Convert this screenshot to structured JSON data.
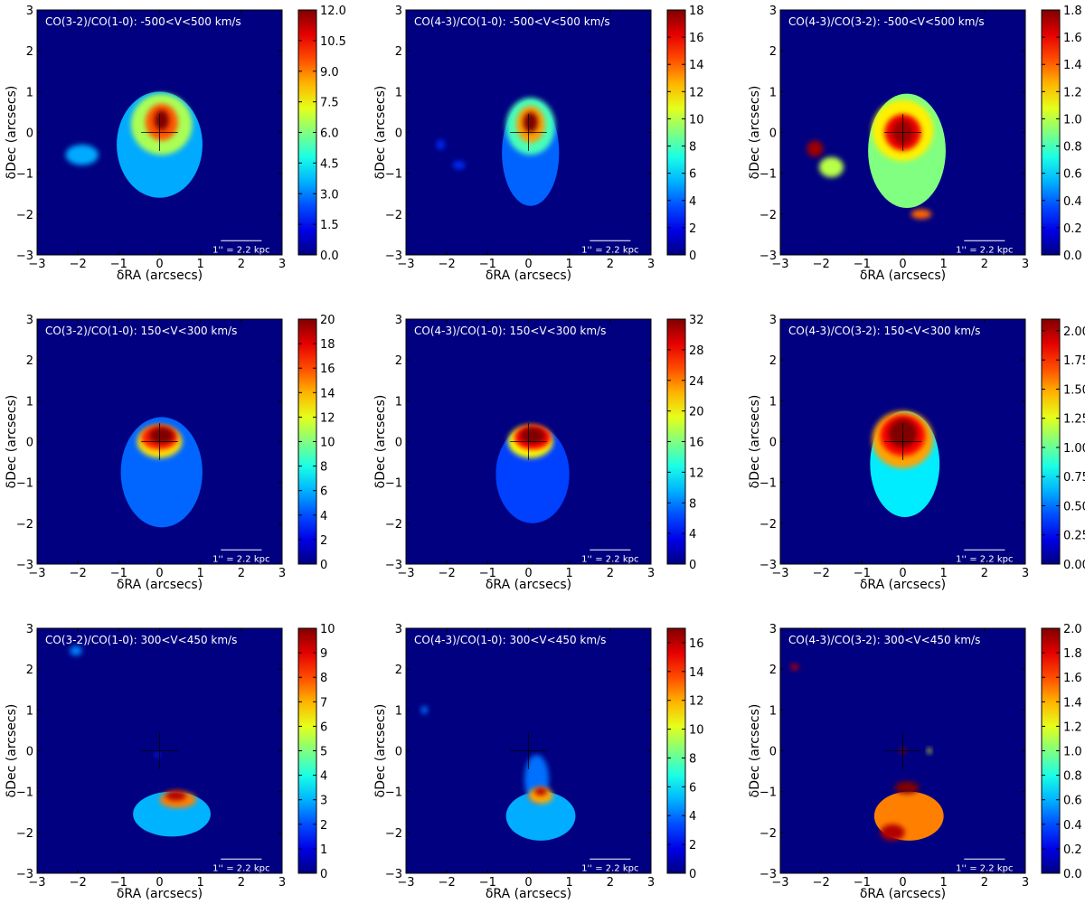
{
  "figure": {
    "scale_bar_label": "1'' = 2.2 kpc"
  },
  "chart_data": [
    {
      "type": "heatmap",
      "title": "CO(3-2)/CO(1-0): -500<V<500 km/s",
      "xlabel": "δRA (arcsecs)",
      "ylabel": "δDec (arcsecs)",
      "xlim": [
        -3,
        3
      ],
      "ylim": [
        -3,
        3
      ],
      "xticks": [
        "−3",
        "−2",
        "−1",
        "0",
        "1",
        "2",
        "3"
      ],
      "yticks": [
        "−3",
        "−2",
        "−1",
        "0",
        "1",
        "2",
        "3"
      ],
      "colorbar": {
        "min": 0,
        "max": 12,
        "ticks": [
          "0.0",
          "1.5",
          "3.0",
          "4.5",
          "6.0",
          "7.5",
          "9.0",
          "10.5",
          "12.0"
        ]
      },
      "features": [
        {
          "x": 0.0,
          "y": -0.3,
          "rx": 1.05,
          "ry": 1.3,
          "value": 3.5
        },
        {
          "x": 0.05,
          "y": 0.2,
          "rx": 0.75,
          "ry": 0.75,
          "value": 6.5
        },
        {
          "x": 0.05,
          "y": 0.25,
          "rx": 0.4,
          "ry": 0.45,
          "value": 9.5
        },
        {
          "x": 0.05,
          "y": 0.3,
          "rx": 0.18,
          "ry": 0.25,
          "value": 12
        },
        {
          "x": -1.9,
          "y": -0.55,
          "rx": 0.4,
          "ry": 0.25,
          "value": 3.5
        }
      ]
    },
    {
      "type": "heatmap",
      "title": "CO(4-3)/CO(1-0): -500<V<500 km/s",
      "xlabel": "δRA (arcsecs)",
      "ylabel": "δDec (arcsecs)",
      "xlim": [
        -3,
        3
      ],
      "ylim": [
        -3,
        3
      ],
      "xticks": [
        "−3",
        "−2",
        "−1",
        "0",
        "1",
        "2",
        "3"
      ],
      "yticks": [
        "−3",
        "−2",
        "−1",
        "0",
        "1",
        "2",
        "3"
      ],
      "colorbar": {
        "min": 0,
        "max": 18,
        "ticks": [
          "0",
          "2",
          "4",
          "6",
          "8",
          "10",
          "12",
          "14",
          "16",
          "18"
        ]
      },
      "features": [
        {
          "x": 0.05,
          "y": -0.5,
          "rx": 0.7,
          "ry": 1.3,
          "value": 4
        },
        {
          "x": 0.05,
          "y": 0.15,
          "rx": 0.6,
          "ry": 0.7,
          "value": 8
        },
        {
          "x": 0.05,
          "y": 0.2,
          "rx": 0.35,
          "ry": 0.45,
          "value": 13
        },
        {
          "x": 0.05,
          "y": 0.25,
          "rx": 0.18,
          "ry": 0.25,
          "value": 18
        },
        {
          "x": -2.15,
          "y": -0.3,
          "rx": 0.1,
          "ry": 0.12,
          "value": 3
        },
        {
          "x": -1.7,
          "y": -0.8,
          "rx": 0.15,
          "ry": 0.1,
          "value": 3
        }
      ]
    },
    {
      "type": "heatmap",
      "title": "CO(4-3)/CO(3-2): -500<V<500 km/s",
      "xlabel": "δRA (arcsecs)",
      "ylabel": "δDec (arcsecs)",
      "xlim": [
        -3,
        3
      ],
      "ylim": [
        -3,
        3
      ],
      "xticks": [
        "−3",
        "−2",
        "−1",
        "0",
        "1",
        "2",
        "3"
      ],
      "yticks": [
        "−3",
        "−2",
        "−1",
        "0",
        "1",
        "2",
        "3"
      ],
      "colorbar": {
        "min": 0,
        "max": 1.8,
        "ticks": [
          "0.0",
          "0.2",
          "0.4",
          "0.6",
          "0.8",
          "1.0",
          "1.2",
          "1.4",
          "1.6",
          "1.8"
        ]
      },
      "features": [
        {
          "x": 0.1,
          "y": -0.45,
          "rx": 0.95,
          "ry": 1.4,
          "value": 0.9
        },
        {
          "x": 0.0,
          "y": 0.05,
          "rx": 0.75,
          "ry": 0.75,
          "value": 1.15
        },
        {
          "x": 0.0,
          "y": 0.0,
          "rx": 0.45,
          "ry": 0.45,
          "value": 1.6
        },
        {
          "x": 0.0,
          "y": 0.0,
          "rx": 0.25,
          "ry": 0.3,
          "value": 1.75
        },
        {
          "x": 0.45,
          "y": -2.0,
          "rx": 0.25,
          "ry": 0.12,
          "value": 1.4
        },
        {
          "x": -1.75,
          "y": -0.85,
          "rx": 0.3,
          "ry": 0.25,
          "value": 1.0
        },
        {
          "x": -2.15,
          "y": -0.4,
          "rx": 0.2,
          "ry": 0.2,
          "value": 1.75
        }
      ]
    },
    {
      "type": "heatmap",
      "title": "CO(3-2)/CO(1-0): 150<V<300 km/s",
      "xlabel": "δRA (arcsecs)",
      "ylabel": "δDec (arcsecs)",
      "xlim": [
        -3,
        3
      ],
      "ylim": [
        -3,
        3
      ],
      "xticks": [
        "−3",
        "−2",
        "−1",
        "0",
        "1",
        "2",
        "3"
      ],
      "yticks": [
        "−3",
        "−2",
        "−1",
        "0",
        "1",
        "2",
        "3"
      ],
      "colorbar": {
        "min": 0,
        "max": 20,
        "ticks": [
          "0",
          "2",
          "4",
          "6",
          "8",
          "10",
          "12",
          "14",
          "16",
          "18",
          "20"
        ]
      },
      "features": [
        {
          "x": 0.05,
          "y": -0.75,
          "rx": 1.0,
          "ry": 1.35,
          "value": 4.5
        },
        {
          "x": 0.0,
          "y": 0.0,
          "rx": 0.55,
          "ry": 0.4,
          "value": 13
        },
        {
          "x": 0.0,
          "y": 0.1,
          "rx": 0.45,
          "ry": 0.3,
          "value": 17
        },
        {
          "x": 0.05,
          "y": 0.15,
          "rx": 0.3,
          "ry": 0.2,
          "value": 20
        }
      ]
    },
    {
      "type": "heatmap",
      "title": "CO(4-3)/CO(1-0): 150<V<300 km/s",
      "xlabel": "δRA (arcsecs)",
      "ylabel": "δDec (arcsecs)",
      "xlim": [
        -3,
        3
      ],
      "ylim": [
        -3,
        3
      ],
      "xticks": [
        "−3",
        "−2",
        "−1",
        "0",
        "1",
        "2",
        "3"
      ],
      "yticks": [
        "−3",
        "−2",
        "−1",
        "0",
        "1",
        "2",
        "3"
      ],
      "colorbar": {
        "min": 0,
        "max": 32,
        "ticks": [
          "0",
          "4",
          "8",
          "12",
          "16",
          "20",
          "24",
          "28",
          "32"
        ]
      },
      "features": [
        {
          "x": 0.1,
          "y": -0.8,
          "rx": 0.9,
          "ry": 1.2,
          "value": 6
        },
        {
          "x": 0.05,
          "y": 0.0,
          "rx": 0.55,
          "ry": 0.4,
          "value": 20
        },
        {
          "x": 0.1,
          "y": 0.1,
          "rx": 0.45,
          "ry": 0.3,
          "value": 28
        },
        {
          "x": 0.1,
          "y": 0.15,
          "rx": 0.3,
          "ry": 0.2,
          "value": 32
        }
      ]
    },
    {
      "type": "heatmap",
      "title": "CO(4-3)/CO(3-2): 150<V<300 km/s",
      "xlabel": "δRA (arcsecs)",
      "ylabel": "δDec (arcsecs)",
      "xlim": [
        -3,
        3
      ],
      "ylim": [
        -3,
        3
      ],
      "xticks": [
        "−3",
        "−2",
        "−1",
        "0",
        "1",
        "2",
        "3"
      ],
      "yticks": [
        "−3",
        "−2",
        "−1",
        "0",
        "1",
        "2",
        "3"
      ],
      "colorbar": {
        "min": 0,
        "max": 2.1,
        "ticks": [
          "0.00",
          "0.25",
          "0.50",
          "0.75",
          "1.00",
          "1.25",
          "1.50",
          "1.75",
          "2.00"
        ]
      },
      "features": [
        {
          "x": 0.05,
          "y": -0.55,
          "rx": 0.85,
          "ry": 1.3,
          "value": 0.75
        },
        {
          "x": 0.0,
          "y": 0.05,
          "rx": 0.75,
          "ry": 0.7,
          "value": 1.5
        },
        {
          "x": 0.0,
          "y": 0.15,
          "rx": 0.55,
          "ry": 0.5,
          "value": 1.85
        },
        {
          "x": 0.0,
          "y": 0.2,
          "rx": 0.35,
          "ry": 0.35,
          "value": 2.1
        }
      ]
    },
    {
      "type": "heatmap",
      "title": "CO(3-2)/CO(1-0): 300<V<450 km/s",
      "xlabel": "δRA (arcsecs)",
      "ylabel": "δDec (arcsecs)",
      "xlim": [
        -3,
        3
      ],
      "ylim": [
        -3,
        3
      ],
      "xticks": [
        "−3",
        "−2",
        "−1",
        "0",
        "1",
        "2",
        "3"
      ],
      "yticks": [
        "−3",
        "−2",
        "−1",
        "0",
        "1",
        "2",
        "3"
      ],
      "colorbar": {
        "min": 0,
        "max": 10,
        "ticks": [
          "0",
          "1",
          "2",
          "3",
          "4",
          "5",
          "6",
          "7",
          "8",
          "9",
          "10"
        ]
      },
      "features": [
        {
          "x": 0.3,
          "y": -1.55,
          "rx": 0.95,
          "ry": 0.55,
          "value": 3.0
        },
        {
          "x": 0.45,
          "y": -1.2,
          "rx": 0.45,
          "ry": 0.2,
          "value": 7.5
        },
        {
          "x": 0.4,
          "y": -1.1,
          "rx": 0.25,
          "ry": 0.12,
          "value": 9.5
        },
        {
          "x": -2.05,
          "y": 2.45,
          "rx": 0.15,
          "ry": 0.12,
          "value": 2.5
        },
        {
          "x": -0.05,
          "y": -0.1,
          "rx": 0.06,
          "ry": 0.08,
          "value": 1.5
        }
      ]
    },
    {
      "type": "heatmap",
      "title": "CO(4-3)/CO(1-0): 300<V<450 km/s",
      "xlabel": "δRA (arcsecs)",
      "ylabel": "δDec (arcsecs)",
      "xlim": [
        -3,
        3
      ],
      "ylim": [
        -3,
        3
      ],
      "xticks": [
        "−3",
        "−2",
        "−1",
        "0",
        "1",
        "2",
        "3"
      ],
      "yticks": [
        "−3",
        "−2",
        "−1",
        "0",
        "1",
        "2",
        "3"
      ],
      "colorbar": {
        "min": 0,
        "max": 17,
        "ticks": [
          "0",
          "2",
          "4",
          "6",
          "8",
          "10",
          "12",
          "14",
          "16"
        ]
      },
      "features": [
        {
          "x": 0.3,
          "y": -1.6,
          "rx": 0.85,
          "ry": 0.6,
          "value": 5
        },
        {
          "x": 0.2,
          "y": -0.7,
          "rx": 0.3,
          "ry": 0.6,
          "value": 4
        },
        {
          "x": 0.3,
          "y": -1.1,
          "rx": 0.3,
          "ry": 0.2,
          "value": 12
        },
        {
          "x": 0.3,
          "y": -1.0,
          "rx": 0.15,
          "ry": 0.1,
          "value": 16
        },
        {
          "x": -2.55,
          "y": 1.0,
          "rx": 0.08,
          "ry": 0.1,
          "value": 4
        }
      ]
    },
    {
      "type": "heatmap",
      "title": "CO(4-3)/CO(3-2): 300<V<450 km/s",
      "xlabel": "δRA (arcsecs)",
      "ylabel": "δDec (arcsecs)",
      "xlim": [
        -3,
        3
      ],
      "ylim": [
        -3,
        3
      ],
      "xticks": [
        "−3",
        "−2",
        "−1",
        "0",
        "1",
        "2",
        "3"
      ],
      "yticks": [
        "−3",
        "−2",
        "−1",
        "0",
        "1",
        "2",
        "3"
      ],
      "colorbar": {
        "min": 0,
        "max": 2.0,
        "ticks": [
          "0.0",
          "0.2",
          "0.4",
          "0.6",
          "0.8",
          "1.0",
          "1.2",
          "1.4",
          "1.6",
          "1.8",
          "2.0"
        ]
      },
      "features": [
        {
          "x": 0.15,
          "y": -1.6,
          "rx": 0.85,
          "ry": 0.6,
          "value": 1.5
        },
        {
          "x": 0.1,
          "y": -0.9,
          "rx": 0.3,
          "ry": 0.15,
          "value": 2.0
        },
        {
          "x": -0.25,
          "y": -2.0,
          "rx": 0.3,
          "ry": 0.2,
          "value": 1.9
        },
        {
          "x": -2.65,
          "y": 2.05,
          "rx": 0.1,
          "ry": 0.08,
          "value": 1.9
        },
        {
          "x": 0.0,
          "y": 0.0,
          "rx": 0.07,
          "ry": 0.08,
          "value": 2.0
        },
        {
          "x": 0.65,
          "y": 0.0,
          "rx": 0.05,
          "ry": 0.07,
          "value": 1.2
        }
      ]
    }
  ]
}
